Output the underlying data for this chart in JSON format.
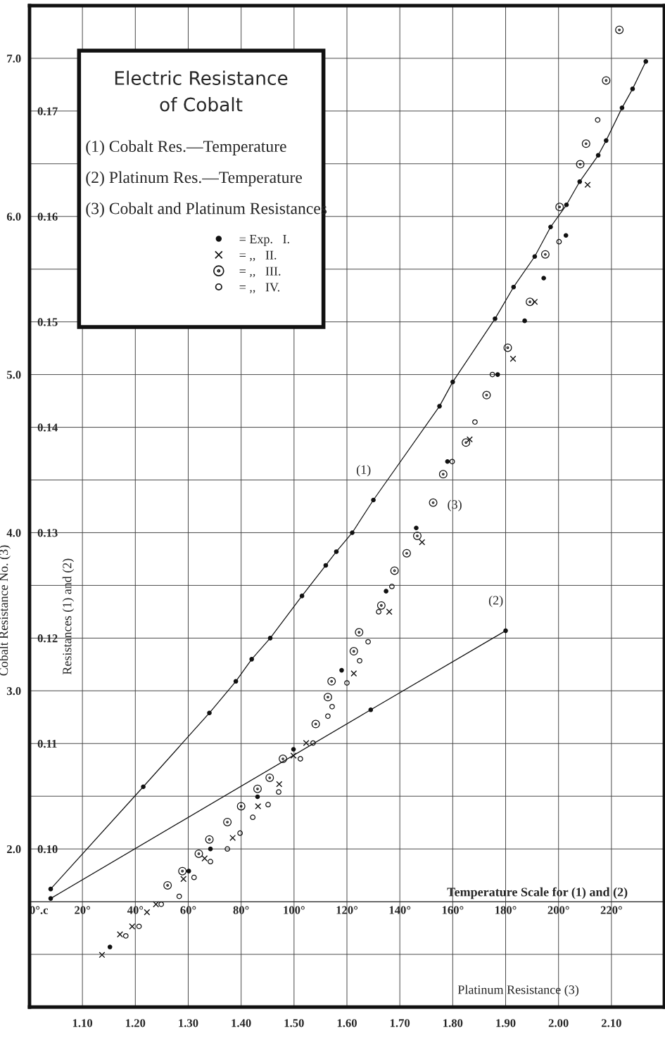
{
  "chart_data": [
    {
      "type": "line",
      "xlabel": "Temperature Scale for (1) and (2)",
      "ylabel": "Resistances (1) and (2)",
      "xlim": [
        0,
        240
      ],
      "ylim": [
        0.085,
        0.18
      ],
      "xticks": [
        {
          "value": 0,
          "label": "0°.c"
        },
        {
          "value": 20,
          "label": "20°"
        },
        {
          "value": 40,
          "label": "40°"
        },
        {
          "value": 60,
          "label": "60°"
        },
        {
          "value": 80,
          "label": "80°"
        },
        {
          "value": 100,
          "label": "100°"
        },
        {
          "value": 120,
          "label": "120°"
        },
        {
          "value": 140,
          "label": "140°"
        },
        {
          "value": 160,
          "label": "160°"
        },
        {
          "value": 180,
          "label": "180°"
        },
        {
          "value": 200,
          "label": "200°"
        },
        {
          "value": 220,
          "label": "220°"
        }
      ],
      "yticks": [
        {
          "value": 0.09,
          "label": null
        },
        {
          "value": 0.095,
          "label": null
        },
        {
          "value": 0.1,
          "label": "0.10"
        },
        {
          "value": 0.105,
          "label": null
        },
        {
          "value": 0.11,
          "label": "0.11"
        },
        {
          "value": 0.115,
          "label": null
        },
        {
          "value": 0.12,
          "label": "0.12"
        },
        {
          "value": 0.125,
          "label": null
        },
        {
          "value": 0.13,
          "label": "0.13"
        },
        {
          "value": 0.135,
          "label": null
        },
        {
          "value": 0.14,
          "label": "0.14"
        },
        {
          "value": 0.145,
          "label": null
        },
        {
          "value": 0.15,
          "label": "0.15"
        },
        {
          "value": 0.155,
          "label": null
        },
        {
          "value": 0.16,
          "label": "0.16"
        },
        {
          "value": 0.165,
          "label": null
        },
        {
          "value": 0.17,
          "label": "0.17"
        },
        {
          "value": 0.175,
          "label": null
        }
      ],
      "grid": true,
      "marker": "circle",
      "annotations": [
        {
          "text": "(1)",
          "x": 130,
          "y": 0.1331
        },
        {
          "text": "(2)",
          "x": 180,
          "y": 0.1207
        }
      ],
      "series": [
        {
          "color": "#111111",
          "x": [
            8,
            43,
            68,
            78,
            84,
            91,
            103,
            112,
            116,
            122,
            130,
            155,
            160,
            176,
            183,
            191,
            197,
            203,
            208,
            215,
            218,
            224,
            228,
            233
          ],
          "values": [
            0.0962,
            0.1059,
            0.1129,
            0.1159,
            0.118,
            0.12,
            0.124,
            0.1269,
            0.1282,
            0.13,
            0.1331,
            0.142,
            0.1443,
            0.1503,
            0.1533,
            0.1562,
            0.159,
            0.1611,
            0.1633,
            0.1658,
            0.1672,
            0.1703,
            0.1721,
            0.1747
          ]
        },
        {
          "color": "#111111",
          "x": [
            8,
            129,
            180
          ],
          "values": [
            0.0953,
            0.1132,
            0.1207
          ]
        }
      ]
    },
    {
      "type": "scatter",
      "title": "Electric Resistance\nof Cobalt",
      "xlabel": "Platinum Resistance (3)",
      "ylabel": "Cobalt Resistance No. (3)",
      "xlim": [
        1.0,
        2.2
      ],
      "ylim": [
        1.0,
        7.3333
      ],
      "xticks": [
        {
          "value": 1.1,
          "label": "1.10"
        },
        {
          "value": 1.2,
          "label": "1.20"
        },
        {
          "value": 1.3,
          "label": "1.30"
        },
        {
          "value": 1.4,
          "label": "1.40"
        },
        {
          "value": 1.5,
          "label": "1.50"
        },
        {
          "value": 1.6,
          "label": "1.60"
        },
        {
          "value": 1.7,
          "label": "1.70"
        },
        {
          "value": 1.8,
          "label": "1.80"
        },
        {
          "value": 1.9,
          "label": "1.90"
        },
        {
          "value": 2.0,
          "label": "2.00"
        },
        {
          "value": 2.1,
          "label": "2.10"
        }
      ],
      "yticks": [
        {
          "value": 2,
          "label": "2.0"
        },
        {
          "value": 3,
          "label": "3.0"
        },
        {
          "value": 4,
          "label": "4.0"
        },
        {
          "value": 5,
          "label": "5.0"
        },
        {
          "value": 6,
          "label": "6.0"
        },
        {
          "value": 7,
          "label": "7.0"
        }
      ],
      "legend": "top left",
      "annotations": [
        "(1) Cobalt Res.—Temperature",
        "(2) Platinum Res.—Temperature",
        "(3) Cobalt and Platinum Resistances",
        {
          "text": "(3)",
          "x": 1.763,
          "y": 4.19
        }
      ],
      "series": [
        {
          "name": "= Exp.   I.",
          "color": "#111111",
          "marker": "circle",
          "x": [
            1.152,
            1.301,
            1.342,
            1.431,
            1.499,
            1.59,
            1.674,
            1.731,
            1.79,
            1.885,
            1.936,
            1.972,
            2.014
          ],
          "values": [
            1.38,
            1.86,
            2.0,
            2.33,
            2.63,
            3.13,
            3.63,
            4.03,
            4.45,
            5.0,
            5.34,
            5.61,
            5.88
          ]
        },
        {
          "name": "= ,,   II.",
          "color": "#111111",
          "marker": "cross",
          "x": [
            1.137,
            1.171,
            1.194,
            1.222,
            1.239,
            1.291,
            1.331,
            1.384,
            1.432,
            1.472,
            1.499,
            1.523,
            1.613,
            1.68,
            1.742,
            1.832,
            1.914,
            1.955,
            2.055
          ],
          "values": [
            1.33,
            1.46,
            1.51,
            1.6,
            1.65,
            1.81,
            1.94,
            2.07,
            2.27,
            2.41,
            2.59,
            2.67,
            3.11,
            3.5,
            3.94,
            4.59,
            5.1,
            5.46,
            6.2
          ]
        },
        {
          "name": "= ,,   III.",
          "color": "#111111",
          "marker": "circle_dot",
          "x": [
            1.261,
            1.289,
            1.32,
            1.34,
            1.374,
            1.4,
            1.431,
            1.454,
            1.479,
            1.541,
            1.564,
            1.571,
            1.613,
            1.623,
            1.665,
            1.69,
            1.713,
            1.733,
            1.763,
            1.782,
            1.825,
            1.864,
            1.904,
            1.946,
            1.975,
            2.002,
            2.041,
            2.052,
            2.09,
            2.115
          ],
          "values": [
            1.77,
            1.86,
            1.97,
            2.06,
            2.17,
            2.27,
            2.38,
            2.45,
            2.57,
            2.79,
            2.96,
            3.06,
            3.25,
            3.37,
            3.54,
            3.76,
            3.87,
            3.98,
            4.19,
            4.37,
            4.57,
            4.87,
            5.17,
            5.46,
            5.76,
            6.06,
            6.33,
            6.46,
            6.86,
            7.18
          ]
        },
        {
          "name": "= ,,   IV.",
          "color": "#111111",
          "marker": "open_circle",
          "x": [
            1.182,
            1.207,
            1.249,
            1.283,
            1.311,
            1.342,
            1.374,
            1.398,
            1.422,
            1.451,
            1.471,
            1.512,
            1.536,
            1.564,
            1.572,
            1.6,
            1.624,
            1.64,
            1.66,
            1.685,
            1.799,
            1.842,
            1.875,
            2.001,
            2.074
          ],
          "values": [
            1.45,
            1.51,
            1.65,
            1.7,
            1.82,
            1.92,
            2.0,
            2.1,
            2.2,
            2.28,
            2.36,
            2.57,
            2.67,
            2.84,
            2.9,
            3.05,
            3.19,
            3.31,
            3.5,
            3.66,
            4.45,
            4.7,
            5.0,
            5.84,
            6.61
          ]
        }
      ]
    }
  ]
}
